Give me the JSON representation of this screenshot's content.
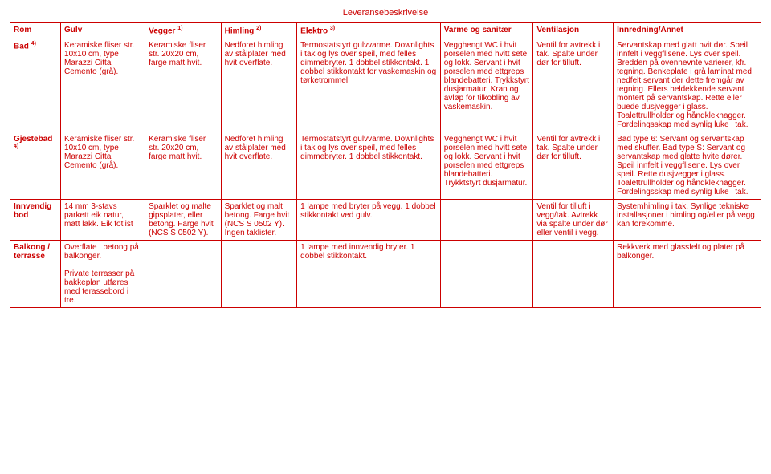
{
  "page_title": "Leveransebeskrivelse",
  "headers": {
    "rom": "Rom",
    "gulv": "Gulv",
    "vegger": "Vegger ",
    "vegger_sup": "1)",
    "himling": "Himling ",
    "himling_sup": "2)",
    "elektro": "Elektro ",
    "elektro_sup": "3)",
    "varme": "Varme og sanitær",
    "ventilasjon": "Ventilasjon",
    "innredning": "Innredning/Annet"
  },
  "rows": [
    {
      "rom": "Bad ",
      "rom_sup": "4)",
      "gulv": "Keramiske fliser str. 10x10 cm, type Marazzi Citta Cemento (grå).",
      "vegger": "Keramiske fliser str. 20x20 cm, farge matt hvit.",
      "himling": "Nedforet himling av stålplater med hvit overflate.",
      "elektro": "Termostatstyrt gulvvarme. Downlights i tak og lys over speil, med felles dimmebryter. 1 dobbel stikkontakt. 1 dobbel stikkontakt for vaskemaskin og tørketrommel.",
      "varme": "Vegghengt WC i hvit porselen med hvitt sete og lokk. Servant i hvit porselen med ettgreps blandebatteri. Trykkstyrt dusjarmatur. Kran og avløp for tilkobling av vaskemaskin.",
      "ventilasjon": "Ventil for avtrekk i tak. Spalte under dør for tilluft.",
      "innredning": "Servantskap med glatt hvit dør. Speil innfelt i veggflisene. Lys over speil. Bredden på ovennevnte varierer, kfr. tegning. Benkeplate i grå laminat med nedfelt servant der dette fremgår av tegning. Ellers heldekkende servant montert på servantskap. Rette eller buede dusjvegger i glass. Toalettrullholder og håndkleknagger. Fordelingsskap med synlig luke i tak."
    },
    {
      "rom": "Gjestebad ",
      "rom_sup": "4)",
      "gulv": "Keramiske fliser str. 10x10 cm, type Marazzi Citta Cemento (grå).",
      "vegger": "Keramiske fliser str. 20x20 cm, farge matt hvit.",
      "himling": "Nedforet himling av stålplater med hvit overflate.",
      "elektro": "Termostatstyrt gulvvarme. Downlights i tak og lys over speil, med felles dimmebryter. 1 dobbel stikkontakt.",
      "varme": "Vegghengt WC i hvit porselen med hvitt sete og lokk. Servant i hvit porselen med ettgreps blandebatteri. Trykktstyrt dusjarmatur.",
      "ventilasjon": "Ventil for avtrekk i tak. Spalte under dør for tilluft.",
      "innredning": "Bad type 6: Servant og servantskap med skuffer. Bad type S: Servant og servantskap med glatte hvite dører. Speil innfelt i veggflisene. Lys over speil. Rette dusjvegger i glass. Toalettrullholder og håndkleknagger. Fordelingsskap med synlig luke i tak."
    },
    {
      "rom": "Innvendig bod",
      "rom_sup": "",
      "gulv": "14 mm 3-stavs parkett eik natur, matt lakk. Eik fotlist",
      "vegger": "Sparklet og malte gipsplater, eller betong. Farge hvit (NCS S 0502 Y).",
      "himling": "Sparklet og malt betong. Farge hvit (NCS S 0502 Y). Ingen taklister.",
      "elektro": "1 lampe med bryter på vegg. 1 dobbel stikkontakt ved gulv.",
      "varme": "",
      "ventilasjon": "Ventil for tilluft i vegg/tak. Avtrekk via spalte under dør eller ventil i vegg.",
      "innredning": "Systemhimling i tak. Synlige tekniske installasjoner i himling og/eller på vegg kan forekomme."
    },
    {
      "rom": "Balkong / terrasse",
      "rom_sup": "",
      "gulv": "Overflate i betong på balkonger.\n\nPrivate terrasser på bakkeplan utføres med terassebord i tre.",
      "vegger": "",
      "himling": "",
      "elektro": "1 lampe med innvendig bryter. 1 dobbel stikkontakt.",
      "varme": "",
      "ventilasjon": "",
      "innredning": "Rekkverk med glassfelt og plater på balkonger."
    }
  ]
}
